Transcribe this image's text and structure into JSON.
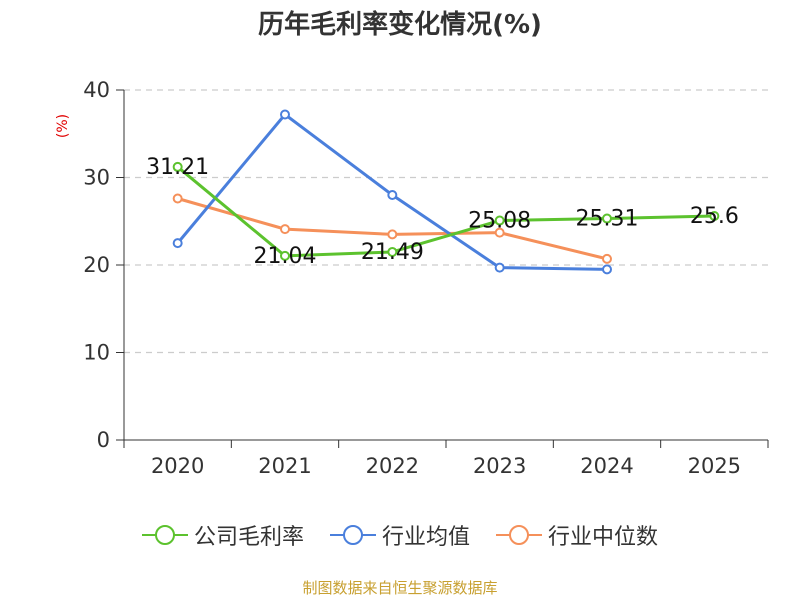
{
  "title": "历年毛利率变化情况(%)",
  "ylabel": "(%)",
  "footer": "制图数据来自恒生聚源数据库",
  "legend": [
    {
      "label": "公司毛利率",
      "color": "#5cc22e"
    },
    {
      "label": "行业均值",
      "color": "#4a7fdc"
    },
    {
      "label": "行业中位数",
      "color": "#f5905a"
    }
  ],
  "chart_data": {
    "type": "line",
    "title": "历年毛利率变化情况(%)",
    "ylabel": "(%)",
    "xlabel": "",
    "categories": [
      "2020",
      "2021",
      "2022",
      "2023",
      "2024",
      "2025"
    ],
    "ylim": [
      0,
      40
    ],
    "yticks": [
      0,
      10,
      20,
      30,
      40
    ],
    "grid": true,
    "legend_position": "bottom",
    "series": [
      {
        "name": "公司毛利率",
        "color": "#5cc22e",
        "values": [
          31.21,
          21.04,
          21.49,
          25.08,
          25.31,
          25.6
        ],
        "labels": [
          "31.21",
          "21.04",
          "21.49",
          "25.08",
          "25.31",
          "25.6"
        ]
      },
      {
        "name": "行业均值",
        "color": "#4a7fdc",
        "values": [
          22.5,
          37.2,
          28.0,
          19.7,
          19.5,
          null
        ]
      },
      {
        "name": "行业中位数",
        "color": "#f5905a",
        "values": [
          27.6,
          24.1,
          23.5,
          23.7,
          20.7,
          null
        ]
      }
    ]
  }
}
